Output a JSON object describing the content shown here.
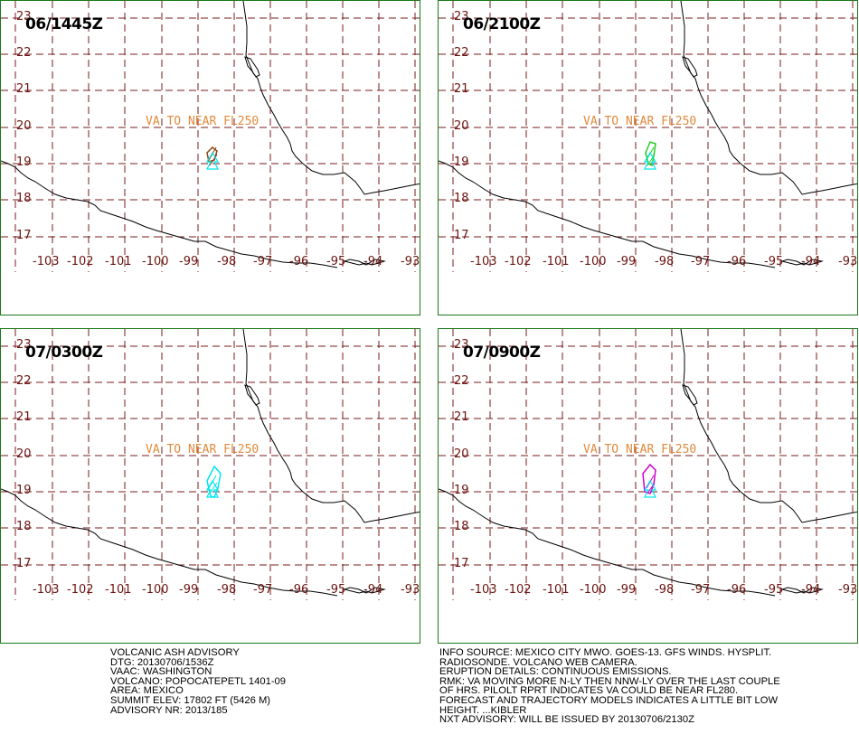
{
  "panels": [
    {
      "time": "06/1445Z",
      "label": "VA TO NEAR FL250",
      "ash_color": "#8b4513"
    },
    {
      "time": "06/2100Z",
      "label": "VA TO NEAR FL250",
      "ash_color": "#22cc22"
    },
    {
      "time": "07/0300Z",
      "label": "VA TO NEAR FL250",
      "ash_color": "#00e5ee"
    },
    {
      "time": "07/0900Z",
      "label": "VA TO NEAR FL250",
      "ash_color": "#cc00cc"
    }
  ],
  "lat_labels": [
    "23",
    "22",
    "21",
    "20",
    "19",
    "18",
    "17"
  ],
  "lon_labels": [
    "-103",
    "-102",
    "-101",
    "-100",
    "-99",
    "-98",
    "-97",
    "-96",
    "-95",
    "-94",
    "-93"
  ],
  "colors": {
    "grid": "#7a1b1b",
    "coast": "#000000",
    "border": "#1a7a1a",
    "volcano": "#00e5ee",
    "label": "#e08a3c"
  },
  "advisory_left": [
    "VOLCANIC ASH ADVISORY",
    "DTG: 20130706/1536Z",
    "VAAC: WASHINGTON",
    "VOLCANO: POPOCATEPETL 1401-09",
    "AREA: MEXICO",
    "SUMMIT ELEV: 17802 FT (5426 M)",
    "ADVISORY NR: 2013/185"
  ],
  "advisory_right": [
    "INFO SOURCE: MEXICO CITY MWO. GOES-13. GFS WINDS. HYSPLIT.",
    "RADIOSONDE. VOLCANO WEB CAMERA.",
    "ERUPTION DETAILS: CONTINUOUS EMISSIONS.",
    "RMK: VA MOVING MORE N-LY THEN NNW-LY OVER THE LAST COUPLE",
    "OF HRS. PILOLT RPRT INDICATES VA COULD BE NEAR FL280.",
    "FORECAST AND TRAJECTORY MODELS INDICATES A LITTLE BIT LOW",
    "HEIGHT. ...KIBLER",
    "NXT ADVISORY: WILL BE ISSUED BY 20130706/2130Z"
  ]
}
